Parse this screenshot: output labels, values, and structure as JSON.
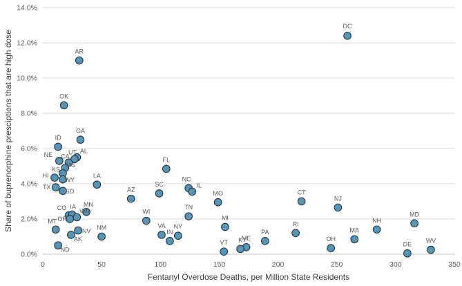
{
  "chart_data": {
    "type": "scatter",
    "title": "",
    "xlabel": "Fentanyl Overdose Deaths, per Million State Residents",
    "ylabel": "Share of buprenorphine presciptions that are high dose",
    "xlim": [
      0,
      350
    ],
    "ylim": [
      0,
      0.14
    ],
    "x_ticks": [
      0,
      50,
      100,
      150,
      200,
      250,
      300,
      350
    ],
    "x_tick_labels": [
      "0",
      "50",
      "100",
      "150",
      "200",
      "250",
      "300",
      "350"
    ],
    "y_ticks": [
      0,
      0.02,
      0.04,
      0.06,
      0.08,
      0.1,
      0.12,
      0.14
    ],
    "y_tick_labels": [
      "0.0%",
      "2.0%",
      "4.0%",
      "6.0%",
      "8.0%",
      "10.0%",
      "12.0%",
      "14.0%"
    ],
    "grid": "horizontal",
    "legend": "none",
    "colors": {
      "marker_fill": "#5b93b0",
      "marker_stroke": "#1f3a4d"
    },
    "points": [
      {
        "label": "DC",
        "x": 259,
        "y": 0.124
      },
      {
        "label": "AR",
        "x": 31,
        "y": 0.11
      },
      {
        "label": "OK",
        "x": 18,
        "y": 0.0845
      },
      {
        "label": "GA",
        "x": 32,
        "y": 0.065
      },
      {
        "label": "ID",
        "x": 13,
        "y": 0.061
      },
      {
        "label": "AL",
        "x": 29,
        "y": 0.055
      },
      {
        "label": "UT",
        "x": 27,
        "y": 0.054
      },
      {
        "label": "NE",
        "x": 14,
        "y": 0.053
      },
      {
        "label": "CA",
        "x": 22,
        "y": 0.052
      },
      {
        "label": "MS",
        "x": 19,
        "y": 0.049
      },
      {
        "label": "FL",
        "x": 105,
        "y": 0.0485
      },
      {
        "label": "KS",
        "x": 17,
        "y": 0.046
      },
      {
        "label": "HI",
        "x": 10,
        "y": 0.0435
      },
      {
        "label": "WY",
        "x": 17,
        "y": 0.0425
      },
      {
        "label": "LA",
        "x": 46,
        "y": 0.0395
      },
      {
        "label": "TX",
        "x": 11,
        "y": 0.038
      },
      {
        "label": "NC",
        "x": 124,
        "y": 0.0375
      },
      {
        "label": "IL",
        "x": 127,
        "y": 0.0355
      },
      {
        "label": "SD",
        "x": 17,
        "y": 0.036
      },
      {
        "label": "SC",
        "x": 99,
        "y": 0.0345
      },
      {
        "label": "AZ",
        "x": 75,
        "y": 0.0315
      },
      {
        "label": "CT",
        "x": 220,
        "y": 0.03
      },
      {
        "label": "MO",
        "x": 149,
        "y": 0.0295
      },
      {
        "label": "NJ",
        "x": 251,
        "y": 0.0265
      },
      {
        "label": "MN",
        "x": 37,
        "y": 0.024
      },
      {
        "label": "CO",
        "x": 22,
        "y": 0.022
      },
      {
        "label": "IA",
        "x": 25,
        "y": 0.0225
      },
      {
        "label": "WA",
        "x": 29,
        "y": 0.021
      },
      {
        "label": "OR",
        "x": 23,
        "y": 0.02
      },
      {
        "label": "TN",
        "x": 124,
        "y": 0.0215
      },
      {
        "label": "WI",
        "x": 88,
        "y": 0.019
      },
      {
        "label": "MD",
        "x": 316,
        "y": 0.0175
      },
      {
        "label": "MI",
        "x": 155,
        "y": 0.0155
      },
      {
        "label": "NH",
        "x": 284,
        "y": 0.014
      },
      {
        "label": "MT",
        "x": 11,
        "y": 0.014
      },
      {
        "label": "NV",
        "x": 30,
        "y": 0.0135
      },
      {
        "label": "RI",
        "x": 215,
        "y": 0.012
      },
      {
        "label": "VA",
        "x": 101,
        "y": 0.011
      },
      {
        "label": "AK",
        "x": 24,
        "y": 0.011
      },
      {
        "label": "NY",
        "x": 115,
        "y": 0.0105
      },
      {
        "label": "NM",
        "x": 50,
        "y": 0.01
      },
      {
        "label": "MA",
        "x": 265,
        "y": 0.0085
      },
      {
        "label": "IN",
        "x": 108,
        "y": 0.0075
      },
      {
        "label": "PA",
        "x": 189,
        "y": 0.0075
      },
      {
        "label": "ND",
        "x": 13,
        "y": 0.005
      },
      {
        "label": "ME",
        "x": 173,
        "y": 0.004
      },
      {
        "label": "KY",
        "x": 168,
        "y": 0.003
      },
      {
        "label": "OH",
        "x": 245,
        "y": 0.0035
      },
      {
        "label": "WV",
        "x": 330,
        "y": 0.0025
      },
      {
        "label": "VT",
        "x": 154,
        "y": 0.0015
      },
      {
        "label": "DE",
        "x": 310,
        "y": 0.0005
      }
    ]
  }
}
